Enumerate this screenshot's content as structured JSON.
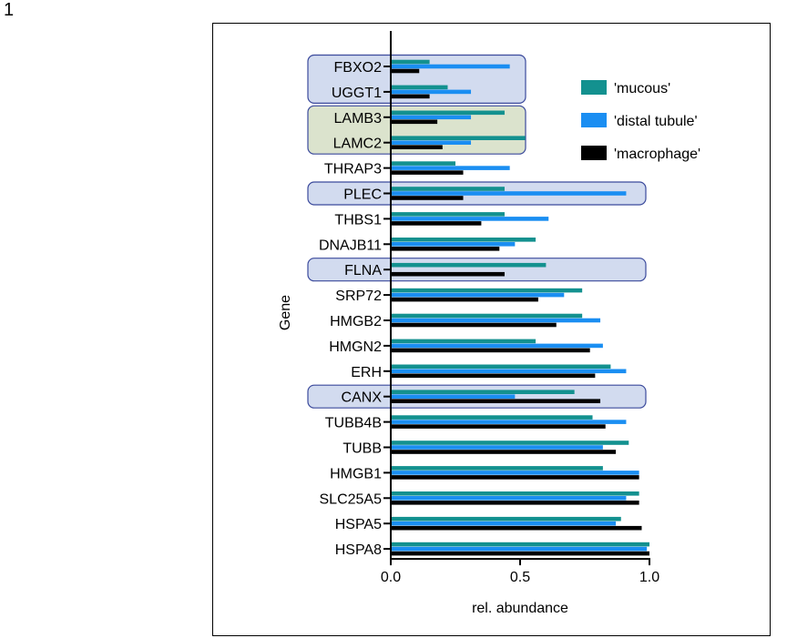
{
  "panel_label": "1",
  "colors": {
    "mucous": "#13918f",
    "distal_tubule": "#1a8ef2",
    "macrophage": "#000000",
    "highlight_blue_fill": "#d2dbef",
    "highlight_green_fill": "#dbe3cd",
    "highlight_stroke": "#3b4a9c"
  },
  "chart_data": {
    "type": "bar",
    "orientation": "horizontal",
    "xlabel": "rel. abundance",
    "ylabel": "Gene",
    "xlim": [
      0,
      1.0
    ],
    "xticks": [
      0.0,
      0.5,
      1.0
    ],
    "xtick_labels": [
      "0.0",
      "0.5",
      "1.0"
    ],
    "legend_position": "top-right",
    "categories": [
      "FBXO2",
      "UGGT1",
      "LAMB3",
      "LAMC2",
      "THRAP3",
      "PLEC",
      "THBS1",
      "DNAJB11",
      "FLNA",
      "SRP72",
      "HMGB2",
      "HMGN2",
      "ERH",
      "CANX",
      "TUBB4B",
      "TUBB",
      "HMGB1",
      "SLC25A5",
      "HSPA5",
      "HSPA8"
    ],
    "series": [
      {
        "name": "'mucous'",
        "color": "#13918f",
        "values": [
          0.15,
          0.22,
          0.44,
          0.52,
          0.25,
          0.44,
          0.44,
          0.56,
          0.6,
          0.74,
          0.74,
          0.56,
          0.85,
          0.71,
          0.78,
          0.92,
          0.82,
          0.96,
          0.89,
          1.0
        ]
      },
      {
        "name": "'distal tubule'",
        "color": "#1a8ef2",
        "values": [
          0.46,
          0.31,
          0.31,
          0.31,
          0.46,
          0.91,
          0.61,
          0.48,
          0.0,
          0.67,
          0.81,
          0.82,
          0.91,
          0.48,
          0.91,
          0.82,
          0.96,
          0.91,
          0.87,
          0.99
        ]
      },
      {
        "name": "'macrophage'",
        "color": "#000000",
        "values": [
          0.11,
          0.15,
          0.18,
          0.2,
          0.28,
          0.28,
          0.35,
          0.42,
          0.44,
          0.57,
          0.64,
          0.77,
          0.79,
          0.81,
          0.83,
          0.87,
          0.96,
          0.96,
          0.97,
          1.0
        ]
      }
    ],
    "highlights": [
      {
        "genes": [
          "FBXO2",
          "UGGT1"
        ],
        "style": "blue",
        "extent": "short"
      },
      {
        "genes": [
          "LAMB3",
          "LAMC2"
        ],
        "style": "green",
        "extent": "short"
      },
      {
        "genes": [
          "PLEC"
        ],
        "style": "blue",
        "extent": "full"
      },
      {
        "genes": [
          "FLNA"
        ],
        "style": "blue",
        "extent": "full"
      },
      {
        "genes": [
          "CANX"
        ],
        "style": "blue",
        "extent": "full"
      }
    ]
  }
}
